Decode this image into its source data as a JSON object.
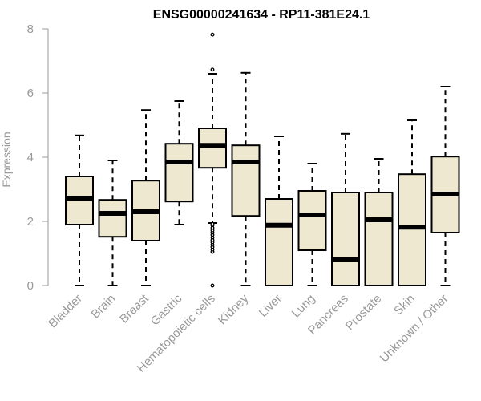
{
  "chart_data": {
    "type": "boxplot",
    "title": "ENSG00000241634 - RP11-381E24.1",
    "xlabel": "",
    "ylabel": "Expression",
    "ylim": [
      0,
      8
    ],
    "yticks": [
      0,
      2,
      4,
      6,
      8
    ],
    "grid": false,
    "categories": [
      "Bladder",
      "Brain",
      "Breast",
      "Gastric",
      "Hematopoietic cells",
      "Kidney",
      "Liver",
      "Lung",
      "Pancreas",
      "Prostate",
      "Skin",
      "Unknown / Other"
    ],
    "boxes": [
      {
        "min": 0.0,
        "q1": 1.9,
        "median": 2.72,
        "q3": 3.4,
        "max": 4.68,
        "outliers": []
      },
      {
        "min": 0.0,
        "q1": 1.52,
        "median": 2.25,
        "q3": 2.67,
        "max": 3.9,
        "outliers": []
      },
      {
        "min": 0.0,
        "q1": 1.4,
        "median": 2.3,
        "q3": 3.27,
        "max": 5.47,
        "outliers": []
      },
      {
        "min": 1.9,
        "q1": 2.62,
        "median": 3.85,
        "q3": 4.42,
        "max": 5.75,
        "outliers": []
      },
      {
        "min": 1.95,
        "q1": 3.67,
        "median": 4.37,
        "q3": 4.9,
        "max": 6.6,
        "outliers": [
          0.0,
          1.05,
          1.12,
          1.2,
          1.27,
          1.35,
          1.42,
          1.5,
          1.58,
          1.65,
          1.72,
          1.8,
          1.88,
          1.92,
          6.73,
          7.82
        ]
      },
      {
        "min": 0.0,
        "q1": 2.17,
        "median": 3.85,
        "q3": 4.37,
        "max": 6.63,
        "outliers": []
      },
      {
        "min": 0.0,
        "q1": 0.0,
        "median": 1.88,
        "q3": 2.7,
        "max": 4.65,
        "outliers": []
      },
      {
        "min": 0.0,
        "q1": 1.1,
        "median": 2.2,
        "q3": 2.95,
        "max": 3.8,
        "outliers": []
      },
      {
        "min": 0.0,
        "q1": 0.0,
        "median": 0.8,
        "q3": 2.9,
        "max": 4.73,
        "outliers": []
      },
      {
        "min": 0.0,
        "q1": 0.0,
        "median": 2.05,
        "q3": 2.9,
        "max": 3.95,
        "outliers": []
      },
      {
        "min": 0.0,
        "q1": 0.0,
        "median": 1.82,
        "q3": 3.47,
        "max": 5.15,
        "outliers": []
      },
      {
        "min": 0.0,
        "q1": 1.65,
        "median": 2.85,
        "q3": 4.02,
        "max": 6.2,
        "outliers": []
      }
    ],
    "colors": {
      "box_fill": "#efe8d0",
      "box_stroke": "#000000",
      "axis": "#999999",
      "text": "#999999",
      "title": "#000000"
    }
  }
}
